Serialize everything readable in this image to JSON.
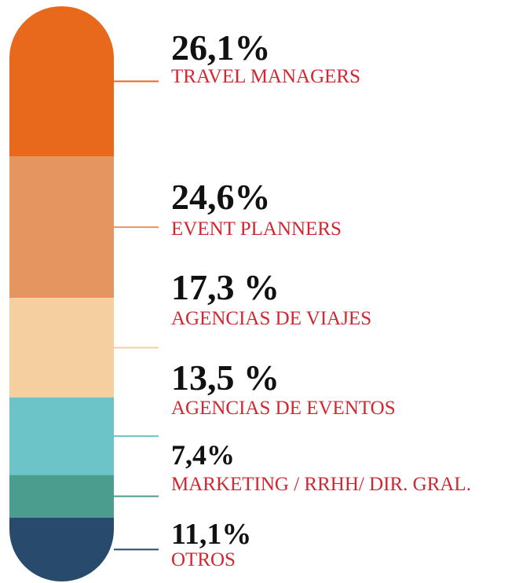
{
  "chart_data": {
    "type": "stacked-bar",
    "categories": [
      "TRAVEL MANAGERS",
      "EVENT PLANNERS",
      "AGENCIAS DE VIAJES",
      "AGENCIAS DE EVENTOS",
      "MARKETING / RRHH/ DIR. GRAL.",
      "OTROS"
    ],
    "values": [
      26.1,
      24.6,
      17.3,
      13.5,
      7.4,
      11.1
    ],
    "value_labels": [
      "26,1%",
      "24,6%",
      "17,3 %",
      "13,5 %",
      "7,4%",
      "11,1%"
    ],
    "colors": [
      "#e8691c",
      "#e5955f",
      "#f6cfa1",
      "#6cc4c9",
      "#4b9d8d",
      "#274a6d"
    ]
  }
}
